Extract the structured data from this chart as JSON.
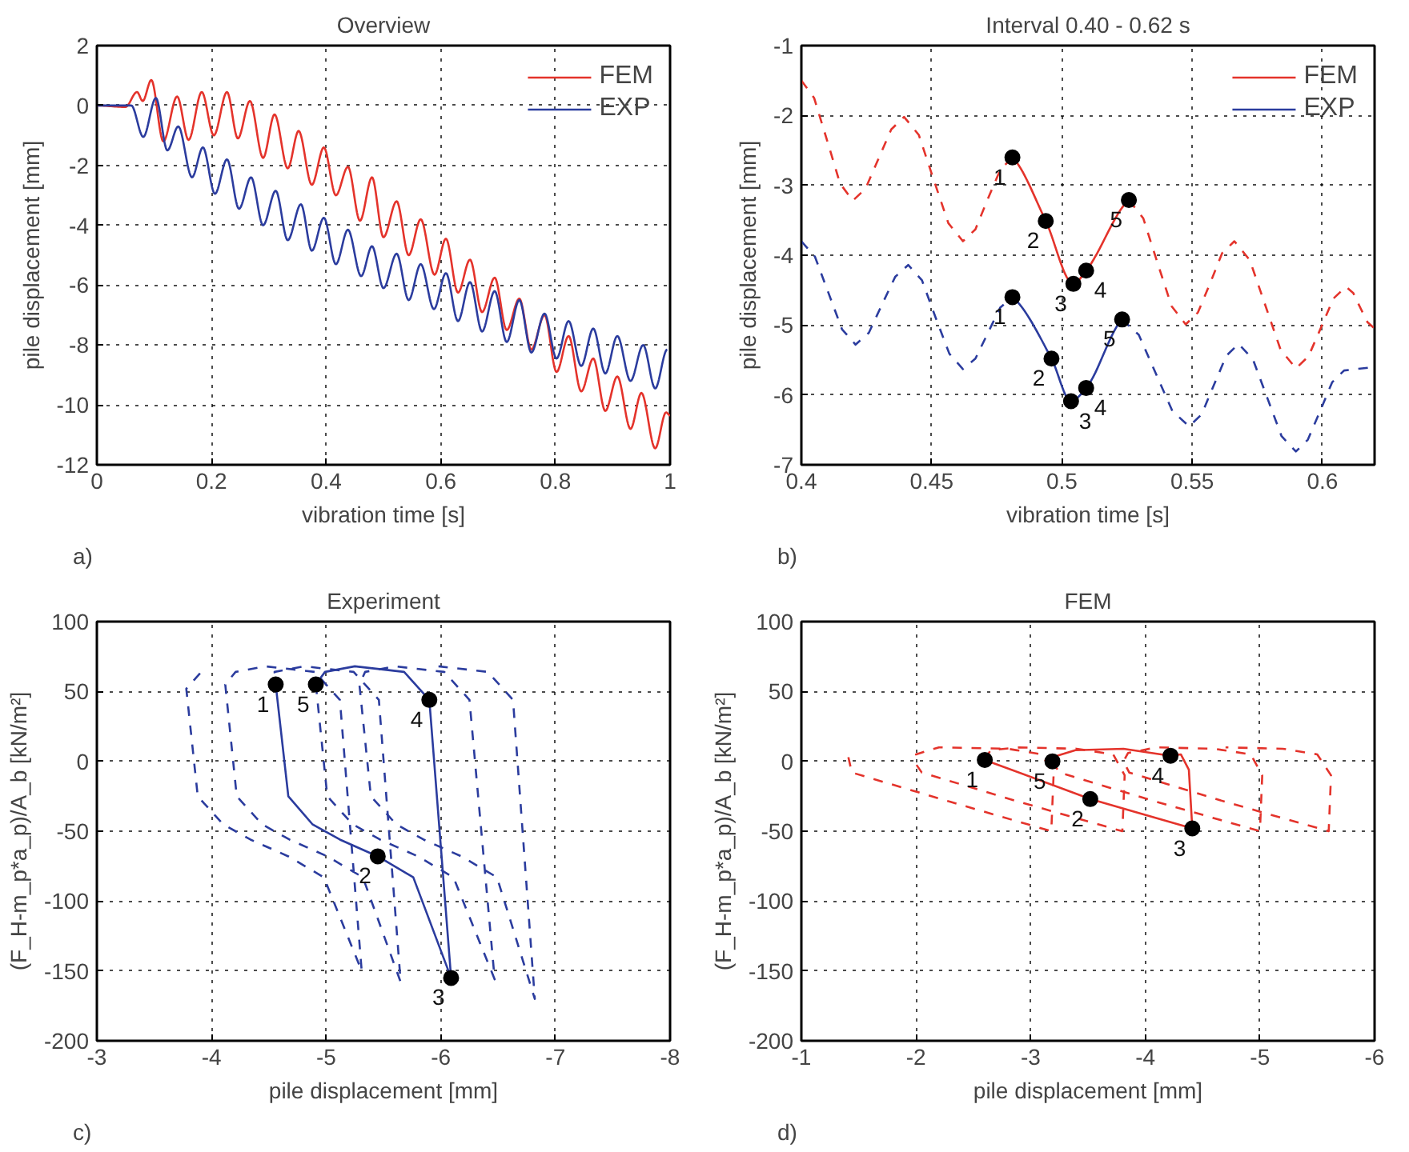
{
  "chart_data": [
    {
      "type": "line",
      "title": "Overview",
      "xlabel": "vibration time [s]",
      "ylabel": "pile displacement [mm]",
      "xlim": [
        0,
        1
      ],
      "ylim": [
        -12,
        2
      ],
      "xticks": [
        0,
        0.2,
        0.4,
        0.6,
        0.8,
        1
      ],
      "yticks": [
        -12,
        -10,
        -8,
        -6,
        -4,
        -2,
        0,
        2
      ],
      "grid": true,
      "legend": "top right",
      "series": [
        {
          "name": "FEM",
          "color": "#e4332b",
          "line_style": "solid",
          "x": [
            0,
            0.05,
            0.07,
            0.08,
            0.095,
            0.116,
            0.14,
            0.16,
            0.183,
            0.204,
            0.227,
            0.246,
            0.267,
            0.29,
            0.31,
            0.333,
            0.352,
            0.375,
            0.396,
            0.417,
            0.438,
            0.459,
            0.48,
            0.5,
            0.523,
            0.544,
            0.565,
            0.589,
            0.609,
            0.63,
            0.651,
            0.672,
            0.694,
            0.715,
            0.737,
            0.758,
            0.781,
            0.802,
            0.823,
            0.845,
            0.866,
            0.887,
            0.908,
            0.931,
            0.95,
            0.974,
            0.993,
            1.0
          ],
          "values": [
            0,
            -0.05,
            0.45,
            0.15,
            0.85,
            -1.2,
            0.3,
            -1.15,
            0.45,
            -1.0,
            0.45,
            -1.1,
            0.15,
            -1.75,
            -0.3,
            -2.1,
            -0.85,
            -2.65,
            -1.4,
            -3.0,
            -2.05,
            -3.85,
            -2.4,
            -4.4,
            -3.2,
            -5.0,
            -3.8,
            -5.65,
            -4.45,
            -6.25,
            -5.15,
            -6.9,
            -5.75,
            -7.5,
            -6.45,
            -8.15,
            -7.0,
            -8.9,
            -7.7,
            -9.55,
            -8.45,
            -10.2,
            -9.05,
            -10.8,
            -9.6,
            -11.45,
            -10.25,
            -10.35
          ]
        },
        {
          "name": "EXP",
          "color": "#2b3c9e",
          "line_style": "solid",
          "x": [
            0,
            0.06,
            0.081,
            0.103,
            0.123,
            0.142,
            0.166,
            0.185,
            0.206,
            0.227,
            0.248,
            0.269,
            0.29,
            0.312,
            0.333,
            0.356,
            0.375,
            0.396,
            0.417,
            0.438,
            0.461,
            0.48,
            0.5,
            0.523,
            0.544,
            0.565,
            0.588,
            0.609,
            0.63,
            0.651,
            0.672,
            0.694,
            0.715,
            0.737,
            0.758,
            0.781,
            0.802,
            0.823,
            0.845,
            0.866,
            0.887,
            0.908,
            0.931,
            0.953,
            0.974,
            0.995
          ],
          "values": [
            0,
            0,
            -1.05,
            0.25,
            -1.5,
            -0.7,
            -2.4,
            -1.4,
            -2.95,
            -1.8,
            -3.45,
            -2.4,
            -4.0,
            -2.85,
            -4.5,
            -3.3,
            -4.85,
            -3.75,
            -5.3,
            -4.15,
            -5.7,
            -4.7,
            -6.1,
            -4.95,
            -6.5,
            -5.3,
            -6.8,
            -5.6,
            -7.2,
            -5.9,
            -7.55,
            -6.2,
            -7.9,
            -6.5,
            -8.25,
            -6.95,
            -8.45,
            -7.2,
            -8.7,
            -7.45,
            -8.95,
            -7.7,
            -9.2,
            -8.0,
            -9.45,
            -8.15
          ]
        }
      ],
      "annotations": [
        "a)"
      ]
    },
    {
      "type": "line",
      "title": "Interval 0.40 - 0.62 s",
      "xlabel": "vibration time [s]",
      "ylabel": "pile displacement [mm]",
      "xlim": [
        0.4,
        0.62
      ],
      "ylim": [
        -7,
        -1
      ],
      "xticks": [
        0.4,
        0.45,
        0.5,
        0.55,
        0.6
      ],
      "yticks": [
        -7,
        -6,
        -5,
        -4,
        -3,
        -2,
        -1
      ],
      "grid": true,
      "legend": "top right",
      "series": [
        {
          "color": "#e4332b",
          "line_style": "dashed",
          "x": [
            0.4,
            0.4049,
            0.4099,
            0.4148,
            0.4197,
            0.4246,
            0.4296,
            0.4345,
            0.4394,
            0.4451,
            0.4507,
            0.4564,
            0.462,
            0.4668,
            0.4715,
            0.4763,
            0.481
          ],
          "values": [
            -1.5,
            -1.75,
            -2.36,
            -2.97,
            -3.22,
            -3.05,
            -2.62,
            -2.2,
            -2.02,
            -2.28,
            -2.91,
            -3.54,
            -3.8,
            -3.63,
            -3.2,
            -2.78,
            -2.6
          ]
        },
        {
          "name": "FEM",
          "color": "#e4332b",
          "line_style": "solid",
          "x": [
            0.481,
            0.4938,
            0.5044,
            0.5093,
            0.5257
          ],
          "values": [
            -2.6,
            -3.51,
            -4.41,
            -4.22,
            -3.21
          ]
        },
        {
          "color": "#e4332b",
          "line_style": "dashed",
          "x": [
            0.5257,
            0.5312,
            0.5366,
            0.5421,
            0.5475,
            0.5522,
            0.5569,
            0.5615,
            0.5662,
            0.5721,
            0.578,
            0.5839,
            0.5898,
            0.5946,
            0.5994,
            0.6042,
            0.609,
            0.6118,
            0.6145,
            0.6173,
            0.62
          ],
          "values": [
            -3.21,
            -3.47,
            -4.1,
            -4.73,
            -4.99,
            -4.82,
            -4.4,
            -3.97,
            -3.8,
            -4.07,
            -4.71,
            -5.35,
            -5.62,
            -5.45,
            -5.04,
            -4.62,
            -4.45,
            -4.54,
            -4.75,
            -4.96,
            -5.05
          ]
        },
        {
          "color": "#2b3c9e",
          "line_style": "dashed",
          "x": [
            0.4,
            0.4052,
            0.4104,
            0.4156,
            0.4208,
            0.4259,
            0.4309,
            0.436,
            0.441,
            0.4463,
            0.4515,
            0.4568,
            0.462,
            0.4668,
            0.4715,
            0.4763,
            0.481
          ],
          "values": [
            -3.8,
            -4.02,
            -4.54,
            -5.06,
            -5.28,
            -5.11,
            -4.71,
            -4.31,
            -4.14,
            -4.36,
            -4.89,
            -5.41,
            -5.63,
            -5.48,
            -5.12,
            -4.75,
            -4.6
          ]
        },
        {
          "name": "EXP",
          "color": "#2b3c9e",
          "line_style": "solid",
          "x": [
            0.481,
            0.496,
            0.5035,
            0.5093,
            0.5231
          ],
          "values": [
            -4.6,
            -5.48,
            -6.09,
            -5.9,
            -4.92
          ]
        },
        {
          "color": "#2b3c9e",
          "line_style": "dashed",
          "x": [
            0.5231,
            0.5295,
            0.536,
            0.5424,
            0.5488,
            0.5536,
            0.5583,
            0.5631,
            0.5678,
            0.5733,
            0.5788,
            0.5843,
            0.5898,
            0.5944,
            0.5991,
            0.6037,
            0.6083,
            0.62
          ],
          "values": [
            -4.92,
            -5.14,
            -5.69,
            -6.23,
            -6.45,
            -6.28,
            -5.86,
            -5.44,
            -5.27,
            -5.49,
            -6.04,
            -6.59,
            -6.81,
            -6.64,
            -6.23,
            -5.82,
            -5.65,
            -5.6
          ]
        },
        {
          "type": "scatter",
          "color": "#000000",
          "marker": "circle",
          "x": [
            0.481,
            0.4938,
            0.5044,
            0.5093,
            0.5257
          ],
          "values": [
            -2.6,
            -3.51,
            -4.41,
            -4.22,
            -3.21
          ]
        },
        {
          "type": "scatter",
          "color": "#000000",
          "marker": "circle",
          "x": [
            0.481,
            0.496,
            0.5035,
            0.5093,
            0.5231
          ],
          "values": [
            -4.6,
            -5.48,
            -6.09,
            -5.9,
            -4.92
          ]
        }
      ],
      "annotations": [
        {
          "text": "1",
          "x": 0.481,
          "y": -2.6
        },
        {
          "text": "2",
          "x": 0.4938,
          "y": -3.51
        },
        {
          "text": "3",
          "x": 0.5044,
          "y": -4.41
        },
        {
          "text": "4",
          "x": 0.5093,
          "y": -4.22
        },
        {
          "text": "5",
          "x": 0.5257,
          "y": -3.21
        },
        {
          "text": "1",
          "x": 0.481,
          "y": -4.6
        },
        {
          "text": "2",
          "x": 0.496,
          "y": -5.48
        },
        {
          "text": "3",
          "x": 0.5035,
          "y": -6.09
        },
        {
          "text": "4",
          "x": 0.5093,
          "y": -5.9
        },
        {
          "text": "5",
          "x": 0.5231,
          "y": -4.92
        },
        "b)"
      ]
    },
    {
      "type": "line",
      "title": "Experiment",
      "xlabel": "pile displacement [mm]",
      "ylabel": "(F_H-m_p*a_p)/A_b [kN/m²]",
      "xlim": [
        -3,
        -8
      ],
      "ylim": [
        -200,
        100
      ],
      "xticks": [
        -3,
        -4,
        -5,
        -6,
        -7,
        -8
      ],
      "yticks": [
        -200,
        -150,
        -100,
        -50,
        0,
        50,
        100
      ],
      "grid": true,
      "series": [
        {
          "color": "#2b3c9e",
          "line_style": "dashed",
          "x": [
            -3.9,
            -3.78,
            -3.88,
            -4.1,
            -4.34,
            -4.67,
            -4.98,
            -5.31,
            -5.12,
            -4.9,
            -4.47,
            -4.21,
            -4.12,
            -4.22,
            -4.44,
            -4.68,
            -5.01,
            -5.32,
            -5.65,
            -5.46,
            -5.24,
            -4.81,
            -4.55,
            -4.56
          ],
          "values": [
            63,
            52,
            -25,
            -45,
            -56,
            -68,
            -83,
            -150,
            44,
            64,
            68,
            64,
            55,
            -25,
            -45,
            -56,
            -68,
            -83,
            -158,
            44,
            64,
            68,
            64,
            55
          ]
        },
        {
          "color": "#2b3c9e",
          "line_style": "solid",
          "x": [
            -4.56,
            -4.67,
            -4.88,
            -5.12,
            -5.45,
            -5.76,
            -6.09,
            -5.9,
            -5.68,
            -5.25,
            -4.99,
            -4.91
          ],
          "values": [
            55,
            -25,
            -45,
            -56,
            -68,
            -83,
            -155,
            44,
            64,
            68,
            64,
            55
          ]
        },
        {
          "color": "#2b3c9e",
          "line_style": "dashed",
          "x": [
            -4.91,
            -5.01,
            -5.23,
            -5.47,
            -5.8,
            -6.11,
            -6.47,
            -6.25,
            -6.03,
            -5.6,
            -5.34,
            -5.29,
            -5.39,
            -5.61,
            -5.85,
            -6.18,
            -6.49,
            -6.82,
            -6.63,
            -6.41,
            -5.98
          ],
          "values": [
            55,
            -25,
            -45,
            -56,
            -68,
            -83,
            -156,
            44,
            64,
            68,
            64,
            55,
            -25,
            -45,
            -56,
            -68,
            -83,
            -170,
            44,
            64,
            68
          ]
        },
        {
          "type": "scatter",
          "color": "#000000",
          "marker": "circle",
          "x": [
            -4.56,
            -5.45,
            -6.09,
            -5.9,
            -4.91
          ],
          "values": [
            55,
            -68,
            -155,
            44,
            55
          ]
        }
      ],
      "annotations": [
        {
          "text": "1",
          "x": -4.56,
          "y": 55
        },
        {
          "text": "2",
          "x": -5.45,
          "y": -68
        },
        {
          "text": "3",
          "x": -6.09,
          "y": -155
        },
        {
          "text": "4",
          "x": -5.9,
          "y": 44
        },
        {
          "text": "5",
          "x": -4.91,
          "y": 55
        },
        "c)"
      ]
    },
    {
      "type": "line",
      "title": "FEM",
      "xlabel": "pile displacement [mm]",
      "ylabel": "(F_H-m_p*a_p)/A_b [kN/m²]",
      "xlim": [
        -1,
        -6
      ],
      "ylim": [
        -200,
        100
      ],
      "xticks": [
        -1,
        -2,
        -3,
        -4,
        -5,
        -6
      ],
      "yticks": [
        -200,
        -150,
        -100,
        -50,
        0,
        50,
        100
      ],
      "grid": true,
      "series": [
        {
          "color": "#e4332b",
          "line_style": "dashed",
          "x": [
            -1.41,
            -1.44,
            -2.3,
            -3.18,
            -3.2,
            -3.1,
            -2.8,
            -2.2,
            -2.0,
            -2.0,
            -2.05,
            -2.9,
            -3.8,
            -3.82,
            -3.72,
            -3.4,
            -2.9,
            -2.65,
            -2.6
          ],
          "values": [
            3,
            -8,
            -29,
            -50,
            -10,
            5,
            9,
            10,
            5,
            -2,
            -8,
            -29,
            -50,
            -10,
            5,
            9,
            10,
            8,
            1
          ]
        },
        {
          "color": "#e4332b",
          "line_style": "solid",
          "x": [
            -2.6,
            -3.52,
            -4.41,
            -4.38,
            -4.31,
            -4.22,
            -3.81,
            -3.39,
            -3.23,
            -3.19
          ],
          "values": [
            1,
            -27,
            -48,
            -6,
            5,
            4,
            9,
            8,
            4,
            0
          ]
        },
        {
          "color": "#e4332b",
          "line_style": "dashed",
          "x": [
            -3.19,
            -3.25,
            -4.1,
            -5.0,
            -5.02,
            -4.92,
            -4.6,
            -4.1,
            -3.85,
            -3.81,
            -3.86,
            -4.7,
            -5.6,
            -5.62,
            -5.5,
            -5.2,
            -4.7
          ],
          "values": [
            0,
            -8,
            -29,
            -50,
            -10,
            5,
            9,
            10,
            6,
            0,
            -8,
            -29,
            -50,
            -10,
            5,
            9,
            10
          ]
        },
        {
          "type": "scatter",
          "color": "#000000",
          "marker": "circle",
          "x": [
            -2.6,
            -3.52,
            -4.41,
            -4.22,
            -3.19
          ],
          "values": [
            1,
            -27,
            -48,
            4,
            0
          ]
        }
      ],
      "annotations": [
        {
          "text": "1",
          "x": -2.6,
          "y": 1
        },
        {
          "text": "2",
          "x": -3.52,
          "y": -27
        },
        {
          "text": "3",
          "x": -4.41,
          "y": -48
        },
        {
          "text": "4",
          "x": -4.22,
          "y": 4
        },
        {
          "text": "5",
          "x": -3.19,
          "y": 0
        },
        "d)"
      ]
    }
  ]
}
